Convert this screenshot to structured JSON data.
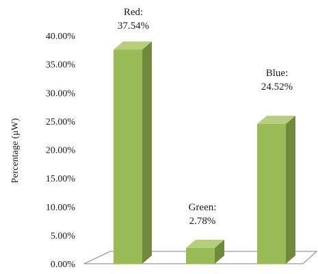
{
  "chart_data": {
    "type": "bar",
    "categories": [
      "Red",
      "Green",
      "Blue"
    ],
    "values": [
      37.54,
      2.78,
      24.52
    ],
    "data_labels": [
      {
        "category": "Red:",
        "value": "37.54%"
      },
      {
        "category": "Green:",
        "value": "2.78%"
      },
      {
        "category": "Blue:",
        "value": "24.52%"
      }
    ],
    "title": "",
    "xlabel": "",
    "ylabel": "Percentage (μW)",
    "ylim": [
      0,
      40
    ],
    "yticks": [
      "0.00%",
      "5.00%",
      "10.00%",
      "15.00%",
      "20.00%",
      "25.00%",
      "30.00%",
      "35.00%",
      "40.00%"
    ],
    "grid": false,
    "legend": "none",
    "style": "3d-column",
    "colors": {
      "bar_front": "#9bbb59",
      "bar_side": "#6e8a3a",
      "bar_top": "#b5cf7a",
      "floor_line": "#808080"
    }
  }
}
